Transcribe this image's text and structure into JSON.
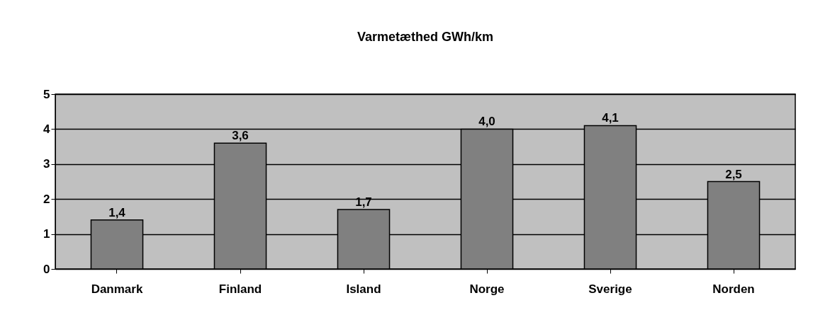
{
  "chart_data": {
    "type": "bar",
    "title": "Varmetæthed  GWh/km",
    "categories": [
      "Danmark",
      "Finland",
      "Island",
      "Norge",
      "Sverige",
      "Norden"
    ],
    "values": [
      1.4,
      3.6,
      1.7,
      4.0,
      4.1,
      2.5
    ],
    "value_labels": [
      "1,4",
      "3,6",
      "1,7",
      "4,0",
      "4,1",
      "2,5"
    ],
    "color": "#808080",
    "ylim": [
      0,
      5
    ],
    "yticks": [
      0,
      1,
      2,
      3,
      4,
      5
    ],
    "grid": "y"
  }
}
